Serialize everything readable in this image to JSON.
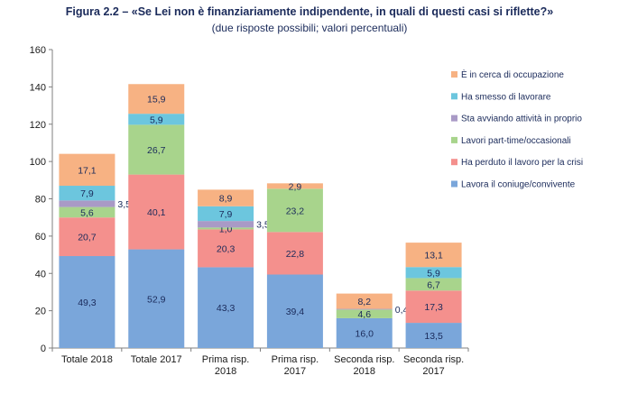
{
  "chart_data": {
    "type": "bar",
    "stacked": true,
    "title": "Figura 2.2 – «Se Lei non è finanziariamente indipendente, in quali di questi casi si riflette?»",
    "subtitle": "(due risposte possibili; valori percentuali)",
    "xlabel": "",
    "ylabel": "",
    "ylim": [
      0,
      160
    ],
    "yticks": [
      0,
      20,
      40,
      60,
      80,
      100,
      120,
      140,
      160
    ],
    "grid": false,
    "legend_position": "right",
    "categories": [
      [
        "Totale 2018"
      ],
      [
        "Totale 2017"
      ],
      [
        "Prima risp.",
        "2018"
      ],
      [
        "Prima risp.",
        "2017"
      ],
      [
        "Seconda risp.",
        "2018"
      ],
      [
        "Seconda risp.",
        "2017"
      ]
    ],
    "series": [
      {
        "name": "Lavora il coniuge/convivente",
        "color": "#7aa6da",
        "values": [
          49.3,
          52.9,
          43.3,
          39.4,
          16.0,
          13.5
        ],
        "labels": [
          "49,3",
          "52,9",
          "43,3",
          "39,4",
          "16,0",
          "13,5"
        ]
      },
      {
        "name": "Ha perduto il lavoro per la crisi",
        "color": "#f4908d",
        "values": [
          20.7,
          40.1,
          20.3,
          22.8,
          0,
          17.3
        ],
        "labels": [
          "20,7",
          "40,1",
          "20,3",
          "22,8",
          "",
          "17,3"
        ]
      },
      {
        "name": "Lavori part-time/occasionali",
        "color": "#a8d48c",
        "values": [
          5.6,
          26.7,
          1.0,
          23.2,
          4.6,
          6.7
        ],
        "labels": [
          "5,6",
          "26,7",
          "1,0",
          "23,2",
          "4,6",
          "6,7"
        ]
      },
      {
        "name": "Sta avviando attività in proprio",
        "color": "#a99ac6",
        "values": [
          3.5,
          0,
          3.5,
          0,
          0.4,
          0
        ],
        "labels": [
          "3,5",
          "",
          "3,5",
          "",
          "0,4",
          ""
        ]
      },
      {
        "name": "Ha smesso di lavorare",
        "color": "#6cc6de",
        "values": [
          7.9,
          5.9,
          7.9,
          0,
          0,
          5.9
        ],
        "labels": [
          "7,9",
          "5,9",
          "7,9",
          "",
          "",
          "5,9"
        ]
      },
      {
        "name": "È in cerca di occupazione",
        "color": "#f7b283",
        "values": [
          17.1,
          15.9,
          8.9,
          2.9,
          8.2,
          13.1
        ],
        "labels": [
          "17,1",
          "15,9",
          "8,9",
          "2,9",
          "8,2",
          "13,1"
        ]
      }
    ],
    "outside_labels": [
      {
        "category_index": 0,
        "series_index": 3
      },
      {
        "category_index": 2,
        "series_index": 3
      },
      {
        "category_index": 4,
        "series_index": 3
      }
    ]
  }
}
